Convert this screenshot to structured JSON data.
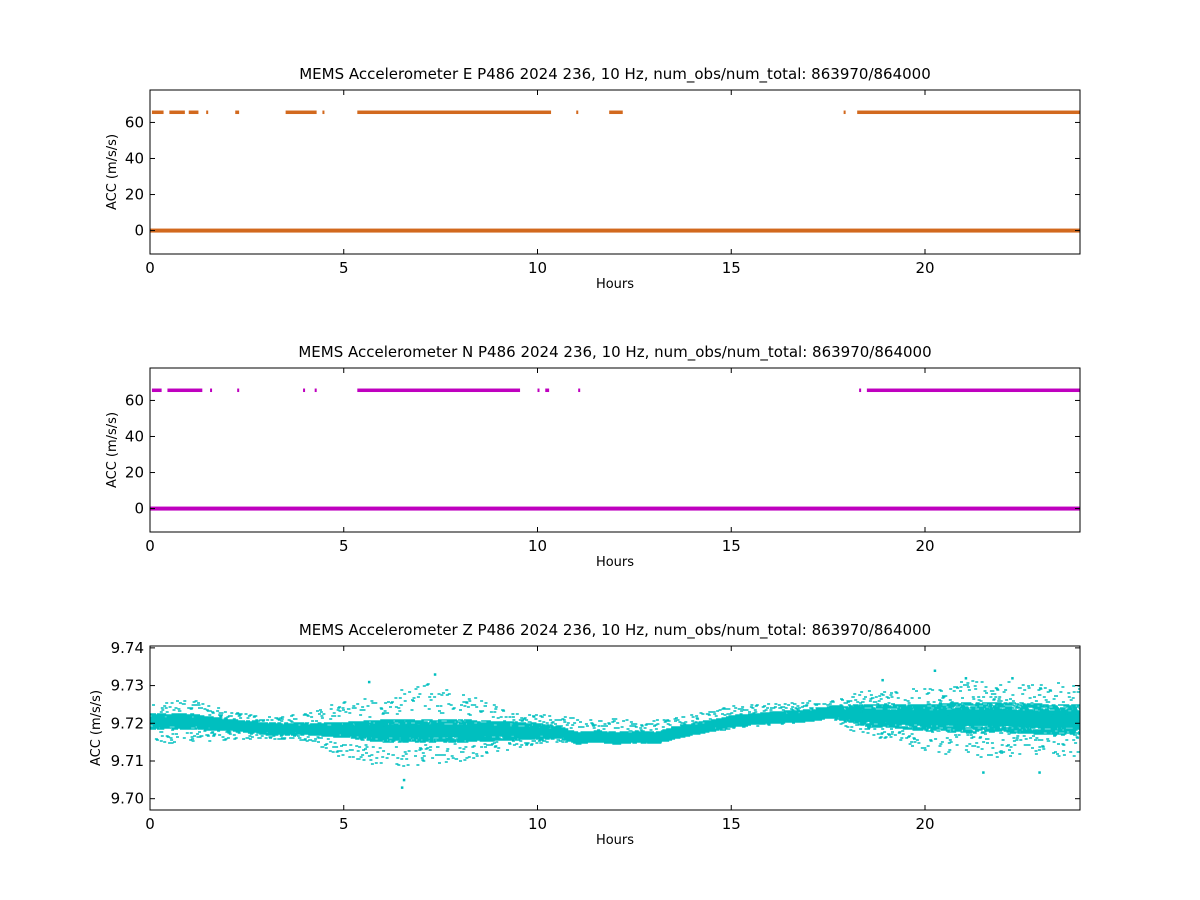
{
  "chart_data": [
    {
      "type": "scatter",
      "title": "MEMS Accelerometer E P486 2024 236, 10 Hz, num_obs/num_total: 863970/864000",
      "xlabel": "Hours",
      "ylabel": "ACC (m/s/s)",
      "xlim": [
        0,
        24
      ],
      "ylim": [
        -13,
        78
      ],
      "xticks": [
        0,
        5,
        10,
        15,
        20
      ],
      "yticks": [
        0,
        20,
        40,
        60
      ],
      "grid": false,
      "color": "#d2691e",
      "series": [
        {
          "values": [
            {
              "y": 0,
              "x_ranges": [
                [
                  0,
                  24
                ]
              ]
            },
            {
              "y": 65.5,
              "x_ranges": [
                [
                  0.05,
                  0.35
                ],
                [
                  0.5,
                  0.9
                ],
                [
                  1.0,
                  1.25
                ],
                [
                  1.45,
                  1.5
                ],
                [
                  2.2,
                  2.3
                ],
                [
                  3.5,
                  4.3
                ],
                [
                  4.45,
                  4.5
                ],
                [
                  5.35,
                  10.35
                ],
                [
                  11.0,
                  11.05
                ],
                [
                  11.85,
                  12.2
                ],
                [
                  17.9,
                  17.95
                ],
                [
                  18.25,
                  24
                ]
              ]
            }
          ]
        }
      ]
    },
    {
      "type": "scatter",
      "title": "MEMS Accelerometer N P486 2024 236, 10 Hz, num_obs/num_total: 863970/864000",
      "xlabel": "Hours",
      "ylabel": "ACC (m/s/s)",
      "xlim": [
        0,
        24
      ],
      "ylim": [
        -13,
        78
      ],
      "xticks": [
        0,
        5,
        10,
        15,
        20
      ],
      "yticks": [
        0,
        20,
        40,
        60
      ],
      "grid": false,
      "color": "#bf00bf",
      "series": [
        {
          "values": [
            {
              "y": 0,
              "x_ranges": [
                [
                  0,
                  24
                ]
              ]
            },
            {
              "y": 65.5,
              "x_ranges": [
                [
                  0.05,
                  0.3
                ],
                [
                  0.45,
                  1.35
                ],
                [
                  1.55,
                  1.6
                ],
                [
                  2.25,
                  2.3
                ],
                [
                  3.95,
                  4.0
                ],
                [
                  4.25,
                  4.3
                ],
                [
                  5.35,
                  9.55
                ],
                [
                  10.0,
                  10.05
                ],
                [
                  10.2,
                  10.3
                ],
                [
                  11.05,
                  11.1
                ],
                [
                  18.3,
                  18.35
                ],
                [
                  18.5,
                  24
                ]
              ]
            }
          ]
        }
      ]
    },
    {
      "type": "scatter",
      "title": "MEMS Accelerometer Z P486 2024 236, 10 Hz, num_obs/num_total: 863970/864000",
      "xlabel": "Hours",
      "ylabel": "ACC (m/s/s)",
      "xlim": [
        0,
        24
      ],
      "ylim": [
        9.697,
        9.7405
      ],
      "xticks": [
        0,
        5,
        10,
        15,
        20
      ],
      "yticks": [
        9.7,
        9.71,
        9.72,
        9.73,
        9.74
      ],
      "ytick_labels": [
        "9.70",
        "9.71",
        "9.72",
        "9.73",
        "9.74"
      ],
      "grid": false,
      "color": "#00bfbf",
      "series": [
        {
          "x": [
            0,
            1,
            2,
            3,
            4,
            5,
            6,
            7,
            8,
            9,
            10,
            10.5,
            11,
            11.5,
            12,
            12.5,
            13,
            13.5,
            14,
            15,
            16,
            17,
            17.5,
            18,
            18.5,
            19,
            20,
            21,
            22,
            23,
            24
          ],
          "center": [
            9.7205,
            9.7205,
            9.7195,
            9.7185,
            9.7185,
            9.7182,
            9.718,
            9.718,
            9.718,
            9.718,
            9.7178,
            9.7175,
            9.716,
            9.7165,
            9.716,
            9.7165,
            9.716,
            9.7175,
            9.7185,
            9.7205,
            9.7215,
            9.722,
            9.723,
            9.7225,
            9.722,
            9.722,
            9.7215,
            9.7215,
            9.7215,
            9.721,
            9.721
          ],
          "half_width": [
            0.002,
            0.002,
            0.0015,
            0.0015,
            0.0015,
            0.002,
            0.003,
            0.003,
            0.003,
            0.0025,
            0.002,
            0.0015,
            0.0015,
            0.0015,
            0.0015,
            0.0015,
            0.0015,
            0.0015,
            0.0015,
            0.0015,
            0.0015,
            0.0015,
            0.0015,
            0.002,
            0.003,
            0.003,
            0.0035,
            0.004,
            0.004,
            0.004,
            0.004
          ],
          "min": [
            9.7145,
            9.7148,
            9.7155,
            9.7158,
            9.7155,
            9.7098,
            9.7085,
            9.709,
            9.7095,
            9.7125,
            9.7145,
            9.715,
            9.7148,
            9.7148,
            9.7148,
            9.7148,
            9.7148,
            9.716,
            9.7168,
            9.7185,
            9.7195,
            9.7205,
            9.7215,
            9.7185,
            9.7165,
            9.7155,
            9.7125,
            9.711,
            9.711,
            9.7115,
            9.711
          ],
          "max": [
            9.725,
            9.7265,
            9.723,
            9.722,
            9.7225,
            9.726,
            9.7275,
            9.731,
            9.728,
            9.7245,
            9.723,
            9.7215,
            9.722,
            9.7205,
            9.7215,
            9.7205,
            9.7208,
            9.7215,
            9.7225,
            9.7245,
            9.7252,
            9.726,
            9.726,
            9.7275,
            9.729,
            9.7285,
            9.7295,
            9.7315,
            9.731,
            9.731,
            9.7305
          ],
          "outliers": [
            {
              "x": 5.65,
              "y": 9.731
            },
            {
              "x": 6.5,
              "y": 9.703
            },
            {
              "x": 6.55,
              "y": 9.705
            },
            {
              "x": 7.35,
              "y": 9.733
            },
            {
              "x": 20.25,
              "y": 9.734
            },
            {
              "x": 21.05,
              "y": 9.732
            },
            {
              "x": 22.25,
              "y": 9.732
            },
            {
              "x": 21.5,
              "y": 9.707
            },
            {
              "x": 22.95,
              "y": 9.707
            },
            {
              "x": 18.9,
              "y": 9.7315
            }
          ]
        }
      ]
    }
  ]
}
